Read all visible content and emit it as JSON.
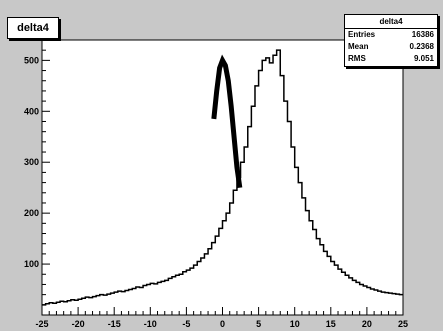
{
  "title": "delta4",
  "stats": {
    "title": "delta4",
    "rows": [
      {
        "label": "Entries",
        "value": "16386"
      },
      {
        "label": "Mean",
        "value": "0.2368"
      },
      {
        "label": "RMS",
        "value": "9.051"
      }
    ]
  },
  "chart_data": {
    "type": "histogram",
    "title": "delta4",
    "xlabel": "",
    "ylabel": "",
    "xlim": [
      -25,
      25
    ],
    "ylim": [
      0,
      540
    ],
    "x_ticks": [
      "-25",
      "-20",
      "-15",
      "-10",
      "-5",
      "0",
      "5",
      "10",
      "15",
      "20",
      "25"
    ],
    "y_ticks": [
      "100",
      "200",
      "300",
      "400",
      "500"
    ],
    "y_tick_values": [
      100,
      200,
      300,
      400,
      500
    ],
    "bin_width": 0.5,
    "bin_start": -25,
    "values": [
      20,
      22,
      24,
      23,
      25,
      27,
      26,
      28,
      30,
      29,
      31,
      33,
      35,
      34,
      36,
      38,
      40,
      39,
      41,
      43,
      45,
      47,
      46,
      48,
      50,
      52,
      55,
      54,
      58,
      60,
      62,
      61,
      64,
      66,
      68,
      72,
      75,
      78,
      80,
      85,
      88,
      92,
      98,
      105,
      112,
      120,
      130,
      142,
      155,
      170,
      185,
      200,
      220,
      245,
      270,
      300,
      330,
      370,
      410,
      450,
      480,
      500,
      505,
      495,
      510,
      520,
      470,
      420,
      380,
      330,
      290,
      260,
      230,
      205,
      185,
      168,
      150,
      138,
      125,
      115,
      105,
      98,
      90,
      84,
      78,
      73,
      68,
      64,
      60,
      57,
      54,
      51,
      49,
      47,
      45,
      44,
      43,
      42,
      41,
      40
    ],
    "fit_curve": {
      "color": "#000000",
      "points": [
        [
          -1.2,
          385
        ],
        [
          -0.8,
          440
        ],
        [
          -0.4,
          485
        ],
        [
          0,
          500
        ],
        [
          0.4,
          490
        ],
        [
          0.8,
          460
        ],
        [
          1.2,
          410
        ],
        [
          1.6,
          350
        ],
        [
          2,
          290
        ],
        [
          2.4,
          250
        ]
      ]
    }
  }
}
